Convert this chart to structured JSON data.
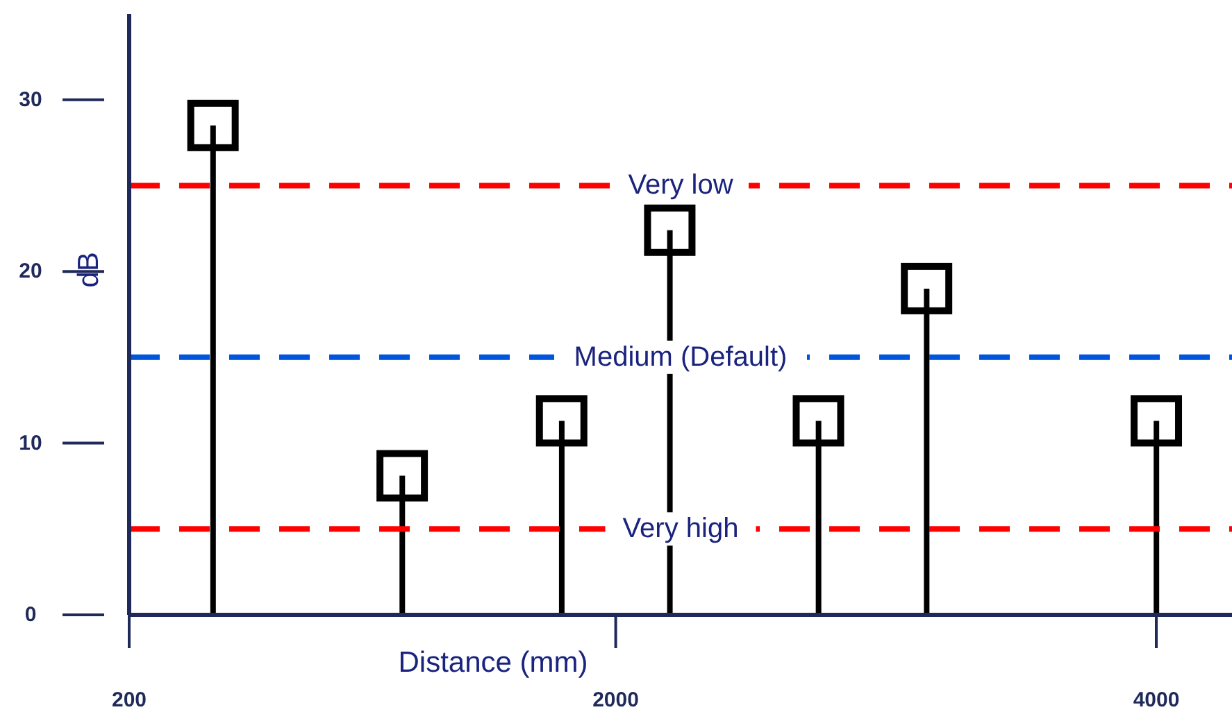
{
  "chart_data": {
    "type": "bar",
    "xlabel": "Distance (mm)",
    "ylabel": "dB",
    "x": [
      510,
      1210,
      1800,
      2200,
      2750,
      3150,
      4000
    ],
    "series": [
      {
        "color": "#000000",
        "values": [
          28.5,
          8.1,
          11.3,
          22.4,
          11.3,
          19.0,
          11.3
        ]
      },
      {
        "type": "scatter",
        "color": "#000000",
        "values": [
          28.5,
          8.1,
          11.3,
          22.4,
          11.3,
          19.0,
          11.3
        ]
      }
    ],
    "xlim": [
      200,
      4280
    ],
    "xticks": [
      200,
      2000,
      4000
    ],
    "ylim": [
      0,
      35
    ],
    "yticks": [
      0,
      10,
      20,
      30
    ],
    "ref_lines": [
      {
        "axis": "y",
        "value": 25,
        "label": "Very low",
        "color": "#ff0000",
        "line_style": "dashed"
      },
      {
        "axis": "y",
        "value": 15,
        "label": "Medium (Default)",
        "color": "#0055dd",
        "line_style": "dashed"
      },
      {
        "axis": "y",
        "value": 5,
        "label": "Very high",
        "color": "#ff0000",
        "line_style": "dashed"
      }
    ],
    "marker": "square",
    "grid": false
  }
}
